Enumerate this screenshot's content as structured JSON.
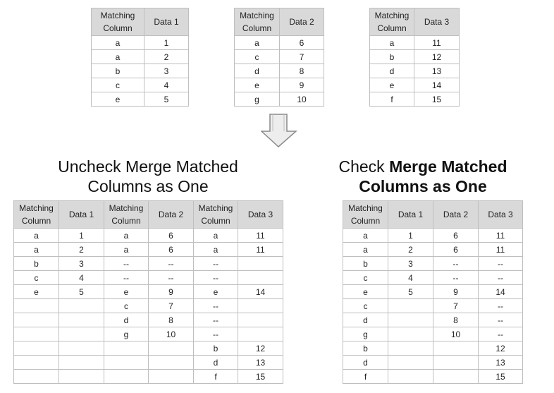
{
  "top_tables": [
    {
      "headers": [
        "Matching\nColumn",
        "Data 1"
      ],
      "rows": [
        [
          "a",
          "1"
        ],
        [
          "a",
          "2"
        ],
        [
          "b",
          "3"
        ],
        [
          "c",
          "4"
        ],
        [
          "e",
          "5"
        ]
      ]
    },
    {
      "headers": [
        "Matching\nColumn",
        "Data 2"
      ],
      "rows": [
        [
          "a",
          "6"
        ],
        [
          "c",
          "7"
        ],
        [
          "d",
          "8"
        ],
        [
          "e",
          "9"
        ],
        [
          "g",
          "10"
        ]
      ]
    },
    {
      "headers": [
        "Matching\nColumn",
        "Data 3"
      ],
      "rows": [
        [
          "a",
          "11"
        ],
        [
          "b",
          "12"
        ],
        [
          "d",
          "13"
        ],
        [
          "e",
          "14"
        ],
        [
          "f",
          "15"
        ]
      ]
    }
  ],
  "left_title": {
    "line1": "Uncheck Merge Matched",
    "line2": "Columns as One"
  },
  "right_title": {
    "prefix": "Check ",
    "bold1": "Merge Matched",
    "bold2": "Columns as One"
  },
  "left_table": {
    "headers": [
      "Matching\nColumn",
      "Data 1",
      "Matching\nColumn",
      "Data 2",
      "Matching\nColumn",
      "Data 3"
    ],
    "rows": [
      [
        "a",
        "1",
        "a",
        "6",
        "a",
        "11"
      ],
      [
        "a",
        "2",
        "a",
        "6",
        "a",
        "11"
      ],
      [
        "b",
        "3",
        "--",
        "--",
        "--",
        ""
      ],
      [
        "c",
        "4",
        "--",
        "--",
        "--",
        ""
      ],
      [
        "e",
        "5",
        "e",
        "9",
        "e",
        "14"
      ],
      [
        "",
        "",
        "c",
        "7",
        "--",
        ""
      ],
      [
        "",
        "",
        "d",
        "8",
        "--",
        ""
      ],
      [
        "",
        "",
        "g",
        "10",
        "--",
        ""
      ],
      [
        "",
        "",
        "",
        "",
        "b",
        "12"
      ],
      [
        "",
        "",
        "",
        "",
        "d",
        "13"
      ],
      [
        "",
        "",
        "",
        "",
        "f",
        "15"
      ]
    ]
  },
  "right_table": {
    "headers": [
      "Matching\nColumn",
      "Data 1",
      "Data 2",
      "Data 3"
    ],
    "rows": [
      [
        "a",
        "1",
        "6",
        "11"
      ],
      [
        "a",
        "2",
        "6",
        "11"
      ],
      [
        "b",
        "3",
        "--",
        "--"
      ],
      [
        "c",
        "4",
        "--",
        "--"
      ],
      [
        "e",
        "5",
        "9",
        "14"
      ],
      [
        "c",
        "",
        "7",
        "--"
      ],
      [
        "d",
        "",
        "8",
        "--"
      ],
      [
        "g",
        "",
        "10",
        "--"
      ],
      [
        "b",
        "",
        "",
        "12"
      ],
      [
        "d",
        "",
        "",
        "13"
      ],
      [
        "f",
        "",
        "",
        "15"
      ]
    ]
  },
  "arrow_icon": "down-arrow-icon"
}
